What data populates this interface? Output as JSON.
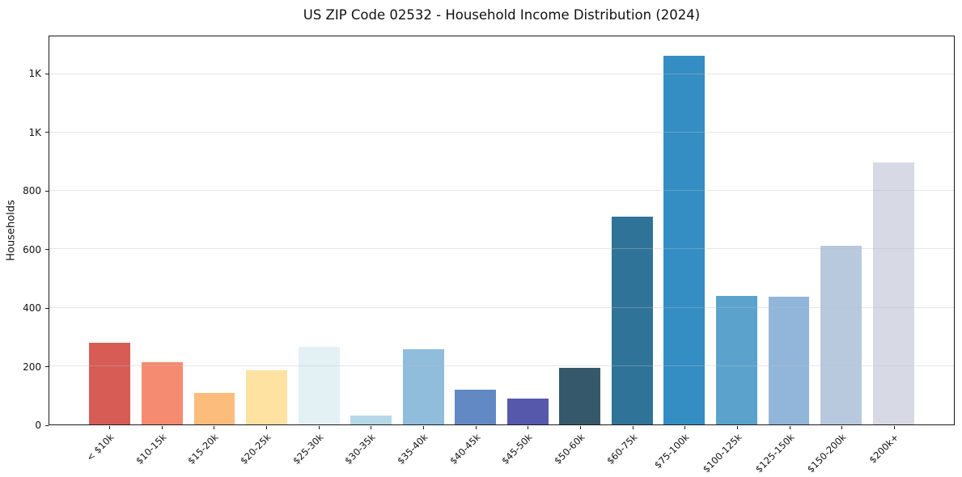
{
  "figure": {
    "background_color": "#ffffff",
    "spine_color": "#1a1a1a",
    "gridline_color": "#e6e6e6"
  },
  "chart_data": {
    "type": "bar",
    "title": "US ZIP Code 02532 - Household Income Distribution (2024)",
    "xlabel": "",
    "ylabel": "Households",
    "categories": [
      "< $10k",
      "$10-15k",
      "$15-20k",
      "$20-25k",
      "$25-30k",
      "$30-35k",
      "$35-40k",
      "$40-45k",
      "$45-50k",
      "$50-60k",
      "$60-75k",
      "$75-100k",
      "$100-125k",
      "$125-150k",
      "$150-200k",
      "$200k+"
    ],
    "values": [
      280,
      213,
      108,
      185,
      267,
      31,
      259,
      120,
      88,
      193,
      713,
      1263,
      441,
      438,
      612,
      898
    ],
    "bar_colors": [
      "#d65c55",
      "#f58b70",
      "#fbbc7c",
      "#fde2a2",
      "#e3f1f5",
      "#b5d8e8",
      "#8fbddb",
      "#6289c4",
      "#5558ab",
      "#35596b",
      "#2f7399",
      "#348ec3",
      "#5ba3cc",
      "#92b6d9",
      "#b8c9de",
      "#d7d9e4"
    ],
    "ylim": [
      0,
      1330
    ],
    "yticks": [
      0,
      200,
      400,
      600,
      800,
      1000,
      1200
    ],
    "ytick_labels": [
      "0",
      "200",
      "400",
      "600",
      "800",
      "1K",
      "1K"
    ],
    "grid": "horizontal, drawn semi-transparent above bars",
    "legend": "none",
    "x_tick_rotation_deg": 45
  }
}
